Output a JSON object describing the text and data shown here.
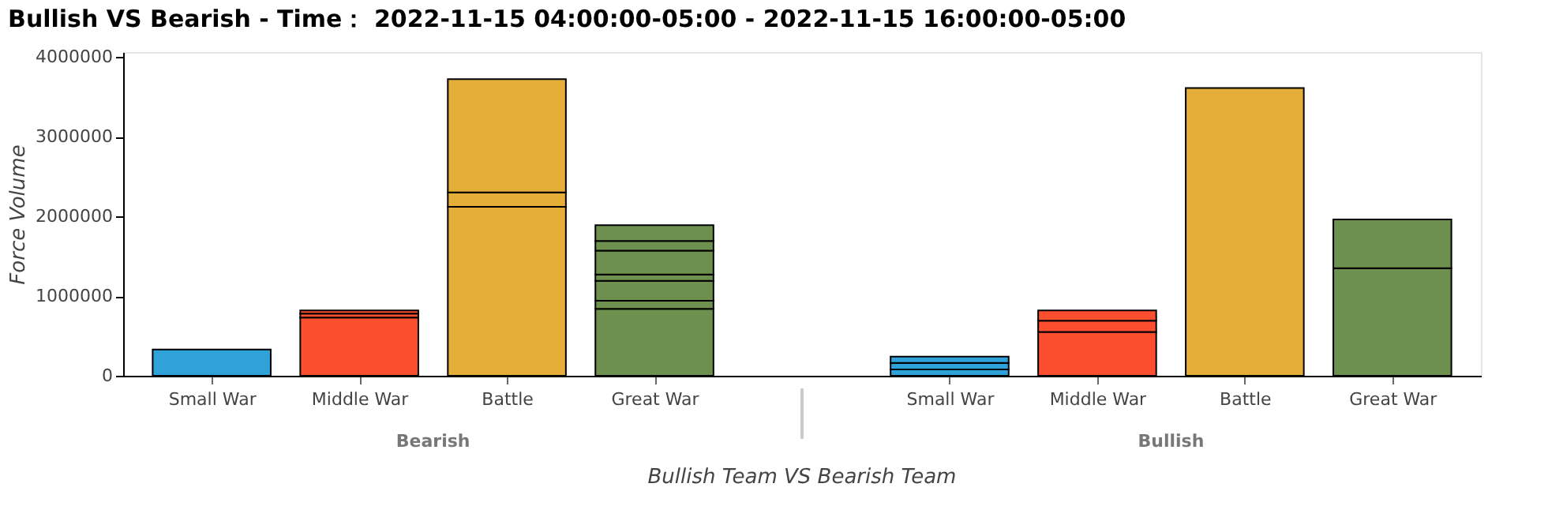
{
  "chart_data": {
    "type": "bar",
    "stacked": true,
    "title": "Bullish VS Bearish - Time： 2022-11-15 04:00:00-05:00 - 2022-11-15 16:00:00-05:00",
    "xlabel": "Bullish Team VS Bearish Team",
    "ylabel": "Force Volume",
    "categories": [
      "Small War",
      "Middle War",
      "Battle",
      "Great War",
      "Small War",
      "Middle War",
      "Battle",
      "Great War"
    ],
    "annotations": [
      "Bearish",
      "Bullish"
    ],
    "series": [
      {
        "colors": [
          "#30a2da",
          "#fc4f30",
          "#e5ae38",
          "#6d904f",
          "#30a2da",
          "#fc4f30",
          "#e5ae38",
          "#6d904f"
        ],
        "values": [
          330000,
          730000,
          2120000,
          840000,
          80000,
          550000,
          3610000,
          1350000
        ]
      },
      {
        "colors": [
          "#30a2da",
          "#fc4f30",
          "#e5ae38",
          "#6d904f",
          "#30a2da",
          "#fc4f30",
          "#e5ae38",
          "#6d904f"
        ],
        "values": [
          null,
          50000,
          180000,
          100000,
          80000,
          140000,
          null,
          610000
        ]
      },
      {
        "colors": [
          "#30a2da",
          "#fc4f30",
          "#e5ae38",
          "#6d904f",
          "#30a2da",
          "#fc4f30",
          "#e5ae38",
          "#6d904f"
        ],
        "values": [
          null,
          40000,
          1420000,
          250000,
          80000,
          130000,
          null,
          null
        ]
      },
      {
        "colors": [
          "#30a2da",
          "#fc4f30",
          "#e5ae38",
          "#6d904f",
          "#30a2da",
          "#fc4f30",
          "#e5ae38",
          "#6d904f"
        ],
        "values": [
          null,
          null,
          null,
          80000,
          null,
          null,
          null,
          null
        ]
      },
      {
        "colors": [
          "#30a2da",
          "#fc4f30",
          "#e5ae38",
          "#6d904f",
          "#30a2da",
          "#fc4f30",
          "#e5ae38",
          "#6d904f"
        ],
        "values": [
          null,
          null,
          null,
          300000,
          null,
          null,
          null,
          null
        ]
      },
      {
        "colors": [
          "#30a2da",
          "#fc4f30",
          "#e5ae38",
          "#6d904f",
          "#30a2da",
          "#fc4f30",
          "#e5ae38",
          "#6d904f"
        ],
        "values": [
          null,
          null,
          null,
          120000,
          null,
          null,
          null,
          null
        ]
      },
      {
        "colors": [
          "#30a2da",
          "#fc4f30",
          "#e5ae38",
          "#6d904f",
          "#30a2da",
          "#fc4f30",
          "#e5ae38",
          "#6d904f"
        ],
        "values": [
          null,
          null,
          null,
          200000,
          null,
          null,
          null,
          null
        ]
      }
    ],
    "ylim": [
      0,
      4060000
    ],
    "yticks": [
      0,
      1000000,
      2000000,
      3000000,
      4000000
    ],
    "grid": false
  }
}
